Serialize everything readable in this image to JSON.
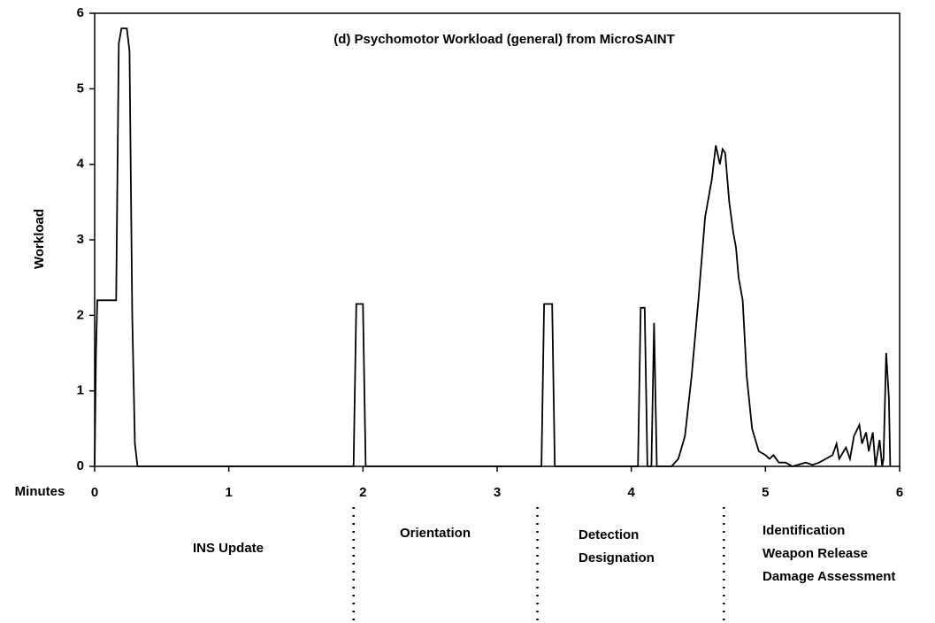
{
  "chart_data": {
    "type": "line",
    "title": "(d) Psychomotor Workload (general) from MicroSAINT",
    "x_label": "Minutes",
    "y_label": "Workload",
    "xlim": [
      0,
      6
    ],
    "ylim": [
      0,
      6
    ],
    "xticks": [
      0,
      1,
      2,
      3,
      4,
      5,
      6
    ],
    "yticks": [
      0,
      1,
      2,
      3,
      4,
      5,
      6
    ],
    "phase_boundaries": [
      1.93,
      3.3,
      4.69
    ],
    "phases": [
      [
        "INS Update"
      ],
      [
        "Orientation"
      ],
      [
        "Detection",
        "Designation"
      ],
      [
        "Identification",
        "Weapon Release",
        "Damage Assessment"
      ]
    ],
    "series": [
      {
        "color": "#000000",
        "x": [
          0,
          0.01,
          0.02,
          0.16,
          0.18,
          0.2,
          0.24,
          0.26,
          0.28,
          0.3,
          0.32,
          1.93,
          1.95,
          2.0,
          2.02,
          3.33,
          3.35,
          3.41,
          3.43,
          4.05,
          4.07,
          4.1,
          4.12,
          4.15,
          4.17,
          4.19,
          4.3,
          4.35,
          4.4,
          4.45,
          4.5,
          4.55,
          4.6,
          4.63,
          4.66,
          4.68,
          4.7,
          4.73,
          4.76,
          4.78,
          4.8,
          4.83,
          4.86,
          4.9,
          4.95,
          5.0,
          5.03,
          5.06,
          5.1,
          5.15,
          5.2,
          5.3,
          5.35,
          5.4,
          5.45,
          5.5,
          5.53,
          5.55,
          5.6,
          5.63,
          5.66,
          5.7,
          5.72,
          5.75,
          5.77,
          5.8,
          5.82,
          5.85,
          5.87,
          5.88,
          5.9,
          5.92,
          5.93
        ],
        "values": [
          0,
          1.5,
          2.2,
          2.2,
          5.6,
          5.8,
          5.8,
          5.5,
          2,
          0.3,
          0,
          0,
          2.15,
          2.15,
          0,
          0,
          2.15,
          2.15,
          0,
          0,
          2.1,
          2.1,
          0,
          0,
          1.9,
          0,
          0,
          0.1,
          0.4,
          1.2,
          2.2,
          3.3,
          3.8,
          4.25,
          4.0,
          4.2,
          4.15,
          3.5,
          3.1,
          2.9,
          2.5,
          2.2,
          1.2,
          0.5,
          0.2,
          0.15,
          0.1,
          0.15,
          0.05,
          0.05,
          0,
          0.05,
          0.02,
          0.05,
          0.1,
          0.15,
          0.3,
          0.1,
          0.25,
          0.1,
          0.4,
          0.55,
          0.3,
          0.45,
          0.2,
          0.45,
          0,
          0.35,
          0,
          0.1,
          1.5,
          0.9,
          0
        ]
      }
    ]
  }
}
